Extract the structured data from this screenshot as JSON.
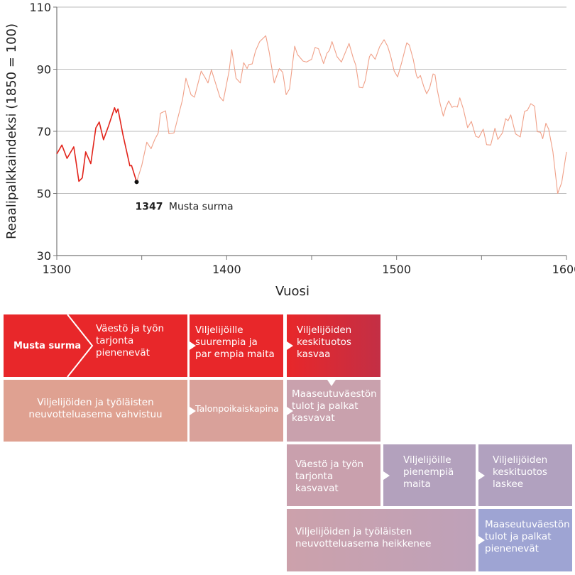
{
  "chart_data": {
    "type": "line",
    "title": "",
    "xlabel": "Vuosi",
    "ylabel": "Reaalipalkkaindeksi (1850 = 100)",
    "xlim": [
      1300,
      1600
    ],
    "ylim": [
      30,
      110
    ],
    "xticks": [
      1300,
      1400,
      1500,
      1600
    ],
    "xticks_minor": [
      1350,
      1450,
      1550
    ],
    "yticks": [
      30,
      50,
      70,
      90,
      110
    ],
    "grid": "horizontal",
    "colors": {
      "before": "#e2231a",
      "after": "#f0a088",
      "grid": "#bbbbbb",
      "axis": "#777777"
    },
    "annotation": {
      "year_label": "1347",
      "text": "Musta surma",
      "x": 1347,
      "y": 53.7
    },
    "series": [
      {
        "name": "before_1347",
        "x": [
          1300,
          1303,
          1306,
          1310,
          1311,
          1313,
          1315,
          1317,
          1320,
          1323,
          1325,
          1327.5,
          1330.5,
          1334,
          1335,
          1336,
          1339,
          1343,
          1344,
          1347
        ],
        "y": [
          62.7,
          65.6,
          61.3,
          65,
          61.5,
          53.9,
          55,
          63.4,
          59.6,
          71.1,
          73,
          67.3,
          71.8,
          77.6,
          76,
          77.2,
          68.8,
          58.9,
          59,
          53.7
        ]
      },
      {
        "name": "after_1347",
        "x": [
          1347,
          1350,
          1353,
          1355.5,
          1357.6,
          1359.7,
          1361,
          1364,
          1366,
          1369,
          1374,
          1376,
          1379,
          1381,
          1385,
          1387.5,
          1389,
          1391,
          1396,
          1398,
          1401.4,
          1403,
          1405.5,
          1408,
          1410,
          1412,
          1413,
          1415,
          1417,
          1419.4,
          1423,
          1425,
          1428,
          1431,
          1433,
          1435,
          1437,
          1440,
          1441.7,
          1445,
          1447,
          1450,
          1452,
          1454,
          1457,
          1459,
          1460.5,
          1462,
          1465,
          1467.5,
          1472,
          1474.5,
          1476,
          1478,
          1480,
          1481.5,
          1484,
          1485,
          1487.4,
          1490,
          1492.6,
          1494.7,
          1496.4,
          1498.6,
          1500.6,
          1503,
          1506,
          1507.5,
          1509.8,
          1511.7,
          1512.6,
          1514,
          1516,
          1517.7,
          1519.5,
          1521.5,
          1522.6,
          1524,
          1525.7,
          1527.5,
          1528.9,
          1530.7,
          1532.6,
          1534,
          1535.8,
          1537.2,
          1539.3,
          1541.8,
          1544,
          1546.6,
          1548.4,
          1551,
          1553,
          1555.4,
          1557.9,
          1559.6,
          1562.3,
          1564.2,
          1565.6,
          1567.2,
          1570,
          1572.8,
          1575.3,
          1577,
          1579,
          1581.2,
          1582.8,
          1584.7,
          1586,
          1587.9,
          1589.5,
          1592,
          1594.8,
          1597.2,
          1600
        ],
        "y": [
          53.7,
          59,
          66.5,
          64.4,
          67.3,
          69.5,
          75.8,
          76.6,
          69.2,
          69.5,
          80.2,
          87.1,
          81.8,
          81,
          89.4,
          87.1,
          85.6,
          89.8,
          81,
          79.8,
          89.4,
          96.3,
          87.1,
          85.6,
          92.1,
          90.2,
          91.5,
          91.7,
          95.9,
          98.9,
          100.8,
          95.5,
          85.6,
          90.2,
          89,
          81.8,
          83.7,
          97.4,
          94.7,
          92.6,
          92.3,
          93.2,
          97,
          96.6,
          91.8,
          95.1,
          96.1,
          98.9,
          94,
          92.3,
          98.3,
          93.6,
          91.3,
          84.2,
          84,
          86.3,
          94,
          94.9,
          93.2,
          97.2,
          99.5,
          97.4,
          94.4,
          89.4,
          87.5,
          92.1,
          98.5,
          97.8,
          93.2,
          87.9,
          87.1,
          88,
          84.4,
          82.1,
          84,
          88.5,
          88.2,
          83.2,
          78.7,
          74.9,
          77.6,
          79.8,
          77.7,
          78.1,
          77.8,
          80.8,
          77.2,
          71.2,
          73.2,
          68.4,
          68,
          70.7,
          65.7,
          65.6,
          71,
          67.4,
          69.5,
          74.1,
          73.4,
          75.3,
          69.2,
          68.2,
          76.4,
          76.8,
          78.9,
          78.1,
          69.9,
          69.7,
          67.6,
          72.6,
          70.7,
          63.4,
          50,
          53.5,
          63.4
        ]
      }
    ]
  },
  "diagram": {
    "start": "Musta surma",
    "r1_b1": [
      "Väestö ja työn",
      "tarjonta",
      "pienenevät"
    ],
    "r1_b2": [
      "Viljelijöille",
      "suurempia ja",
      "par empia maita"
    ],
    "r1_b3": [
      "Viljelijöiden",
      "keskituotos",
      "kasvaa"
    ],
    "r2_b1": [
      "Viljelijöiden ja työläisten",
      "neuvotteluasema vahvistuu"
    ],
    "r2_b2": [
      "Talonpoikaiskapina"
    ],
    "r2_b3": [
      "Maaseutuväestön",
      "tulot ja palkat",
      "kasvavat"
    ],
    "r3_b1": [
      "Väestö ja työn",
      "tarjonta",
      "kasvavat"
    ],
    "r3_b2": [
      "Viljelijöille",
      "pienempiä",
      "maita"
    ],
    "r3_b3": [
      "Viljelijöiden",
      "keskituotos",
      "laskee"
    ],
    "r4_b1": [
      "Viljelijöiden ja työläisten",
      "neuvotteluasema heikkenee"
    ],
    "r4_b2": [
      "Maaseutuväestön",
      "tulot ja palkat",
      "pienenevät"
    ]
  }
}
